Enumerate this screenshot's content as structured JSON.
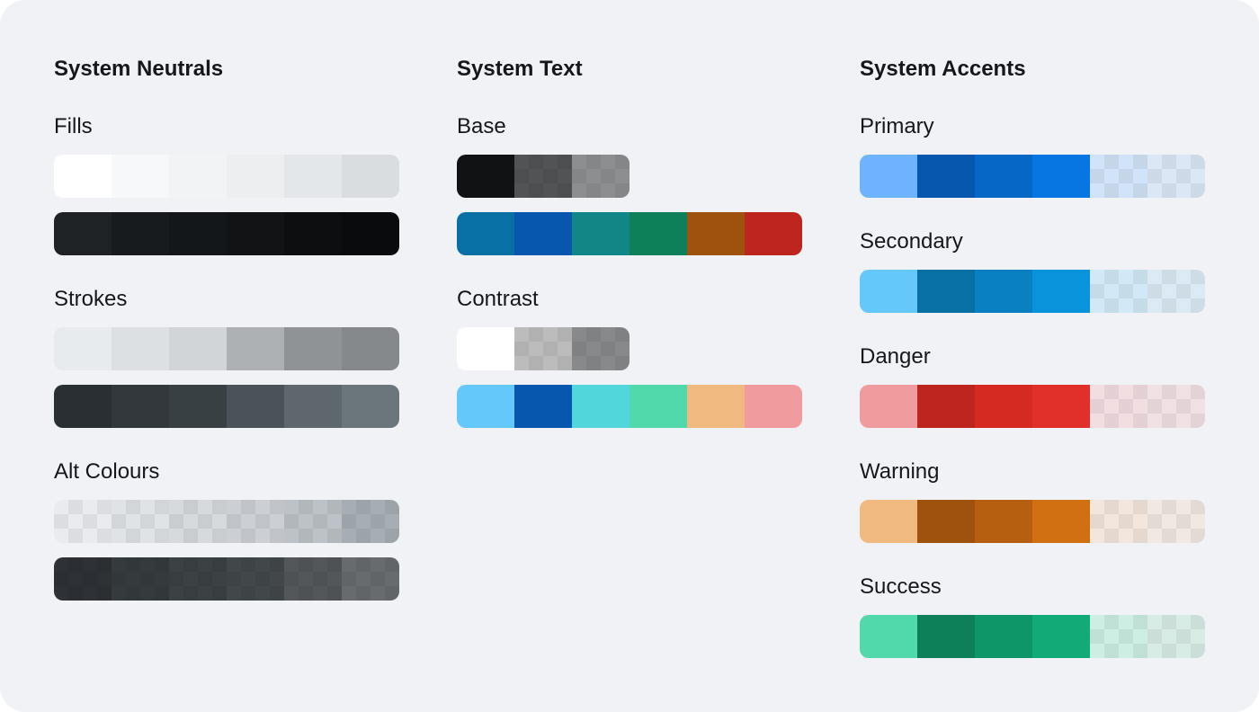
{
  "columns": [
    {
      "title": "System Neutrals",
      "groups": [
        {
          "label": "Fills",
          "rows": [
            [
              {
                "c": "#ffffff"
              },
              {
                "c": "#f7f8fa"
              },
              {
                "c": "#f1f3f4"
              },
              {
                "c": "#eceef0"
              },
              {
                "c": "#e4e7ea"
              },
              {
                "c": "#d9dde0"
              }
            ],
            [
              {
                "c": "#1f2225"
              },
              {
                "c": "#181b1e"
              },
              {
                "c": "#141719"
              },
              {
                "c": "#111315"
              },
              {
                "c": "#0c0e10"
              },
              {
                "c": "#0a0b0d"
              }
            ]
          ]
        },
        {
          "label": "Strokes",
          "rows": [
            [
              {
                "c": "#e8ebed"
              },
              {
                "c": "#dde0e3"
              },
              {
                "c": "#d1d5d8"
              },
              {
                "c": "#adb1b4"
              },
              {
                "c": "#8f9396"
              },
              {
                "c": "#86898c"
              }
            ],
            [
              {
                "c": "#2a2f33"
              },
              {
                "c": "#32383b"
              },
              {
                "c": "#384044"
              },
              {
                "c": "#4a5359"
              },
              {
                "c": "#5d676d"
              },
              {
                "c": "#6b767c"
              }
            ]
          ]
        },
        {
          "label": "Alt Colours",
          "rows": [
            [
              {
                "c": "#e9ebee",
                "t": true
              },
              {
                "c": "#e0e3e6",
                "t": true
              },
              {
                "c": "#d7dadd",
                "t": true
              },
              {
                "c": "#ccd0d4",
                "t": true
              },
              {
                "c": "#bcc2c7",
                "t": true
              },
              {
                "c": "#a6adb4",
                "t": true
              }
            ],
            [
              {
                "c": "#2e3236",
                "t": true
              },
              {
                "c": "#353a3d",
                "t": true
              },
              {
                "c": "#3c4144",
                "t": true
              },
              {
                "c": "#42474a",
                "t": true
              },
              {
                "c": "#535759",
                "t": true
              },
              {
                "c": "#676b6e",
                "t": true
              }
            ]
          ]
        }
      ]
    },
    {
      "title": "System Text",
      "groups": [
        {
          "label": "Base",
          "rows": [
            [
              {
                "c": "#111214"
              },
              {
                "c": "#525354",
                "t": true
              },
              {
                "c": "#8d8e8f",
                "t": true
              }
            ],
            [
              {
                "c": "#0870a5"
              },
              {
                "c": "#0657ad"
              },
              {
                "c": "#108686"
              },
              {
                "c": "#0d8059"
              },
              {
                "c": "#9e520e"
              },
              {
                "c": "#bd251e"
              }
            ]
          ]
        },
        {
          "label": "Contrast",
          "rows": [
            [
              {
                "c": "#ffffff"
              },
              {
                "c": "#bcbcbd",
                "t": true
              },
              {
                "c": "#87898b",
                "t": true
              }
            ],
            [
              {
                "c": "#65c8fb"
              },
              {
                "c": "#0657ad"
              },
              {
                "c": "#51d7db"
              },
              {
                "c": "#51d8ab"
              },
              {
                "c": "#f0b97f"
              },
              {
                "c": "#f09c9f"
              }
            ]
          ]
        }
      ]
    },
    {
      "title": "System Accents",
      "groups": [
        {
          "label": "Primary",
          "rows": [
            [
              {
                "c": "#6db3fd"
              },
              {
                "c": "#0657ad"
              },
              {
                "c": "#0667c7"
              },
              {
                "c": "#0876e2"
              },
              {
                "c": "#d1e3f8",
                "t": true
              },
              {
                "c": "#dbe7f5",
                "t": true
              }
            ]
          ]
        },
        {
          "label": "Secondary",
          "rows": [
            [
              {
                "c": "#65c8fb"
              },
              {
                "c": "#0870a5"
              },
              {
                "c": "#0880c1"
              },
              {
                "c": "#0893da"
              },
              {
                "c": "#d1e9f6",
                "t": true
              },
              {
                "c": "#dbeaf4",
                "t": true
              }
            ]
          ]
        },
        {
          "label": "Danger",
          "rows": [
            [
              {
                "c": "#f09c9f"
              },
              {
                "c": "#bd251e"
              },
              {
                "c": "#d52a21"
              },
              {
                "c": "#e12f2a"
              },
              {
                "c": "#f2dde1",
                "t": true
              },
              {
                "c": "#f1e0e4",
                "t": true
              }
            ]
          ]
        },
        {
          "label": "Warning",
          "rows": [
            [
              {
                "c": "#f0b97f"
              },
              {
                "c": "#9e520e"
              },
              {
                "c": "#b65f10"
              },
              {
                "c": "#d07012"
              },
              {
                "c": "#f3e6dc",
                "t": true
              },
              {
                "c": "#f2e8e2",
                "t": true
              }
            ]
          ]
        },
        {
          "label": "Success",
          "rows": [
            [
              {
                "c": "#51d8ab"
              },
              {
                "c": "#0d8059"
              },
              {
                "c": "#0f9668"
              },
              {
                "c": "#12ab77"
              },
              {
                "c": "#cdeee2",
                "t": true
              },
              {
                "c": "#d8ece6",
                "t": true
              }
            ]
          ]
        }
      ]
    }
  ]
}
